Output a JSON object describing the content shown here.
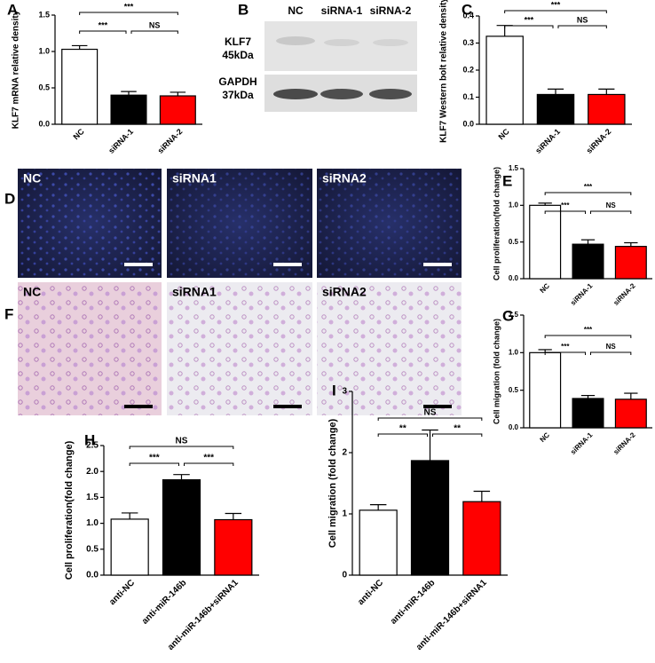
{
  "panel_labels": [
    "A",
    "B",
    "C",
    "D",
    "E",
    "F",
    "G",
    "H",
    "I"
  ],
  "blot": {
    "lanes": [
      "NC",
      "siRNA-1",
      "siRNA-2"
    ],
    "rows": [
      {
        "name": "KLF7",
        "size": "45kDa"
      },
      {
        "name": "GAPDH",
        "size": "37kDa"
      }
    ]
  },
  "micrographs": [
    {
      "labels": [
        "NC",
        "siRNA1",
        "siRNA2"
      ]
    },
    {
      "labels": [
        "NC",
        "siRNA1",
        "siRNA2"
      ]
    }
  ],
  "chart_data": [
    {
      "type": "bar",
      "ylabel": "KLF7 mRNA relative density",
      "categories": [
        "NC",
        "siRNA-1",
        "siRNA-2"
      ],
      "values": [
        1.03,
        0.4,
        0.39
      ],
      "errors": [
        0.05,
        0.05,
        0.05
      ],
      "colors": [
        "#ffffff",
        "#000000",
        "#ff0000"
      ],
      "ylim": [
        0,
        1.5
      ],
      "yticks": [
        {
          "value": 0,
          "label": "0.0"
        },
        0.5,
        {
          "value": 1,
          "label": "1.0"
        },
        1.5
      ],
      "significance": [
        "***",
        "***",
        "NS"
      ]
    },
    {
      "type": "bar",
      "ylabel": "KLF7 Western bolt relative density",
      "categories": [
        "NC",
        "siRNA-1",
        "siRNA-2"
      ],
      "values": [
        0.325,
        0.11,
        0.11
      ],
      "errors": [
        0.04,
        0.02,
        0.02
      ],
      "colors": [
        "#ffffff",
        "#000000",
        "#ff0000"
      ],
      "ylim": [
        0,
        0.4
      ],
      "yticks": [
        {
          "value": 0,
          "label": "0.0"
        },
        0.1,
        0.2,
        0.3,
        0.4
      ],
      "significance": [
        "***",
        "***",
        "NS"
      ]
    },
    {
      "type": "bar",
      "ylabel": "Cell proliferation(fold change)",
      "categories": [
        "NC",
        "siRNA-1",
        "siRNA-2"
      ],
      "values": [
        1.0,
        0.47,
        0.44
      ],
      "errors": [
        0.03,
        0.06,
        0.05
      ],
      "colors": [
        "#ffffff",
        "#000000",
        "#ff0000"
      ],
      "ylim": [
        0,
        1.5
      ],
      "yticks": [
        {
          "value": 0,
          "label": "0.0"
        },
        0.5,
        {
          "value": 1,
          "label": "1.0"
        },
        1.5
      ],
      "significance": [
        "***",
        "***",
        "NS"
      ]
    },
    {
      "type": "bar",
      "ylabel": "Cell migration (fold change)",
      "categories": [
        "NC",
        "siRNA-1",
        "siRNA-2"
      ],
      "values": [
        1.0,
        0.39,
        0.38
      ],
      "errors": [
        0.04,
        0.04,
        0.08
      ],
      "colors": [
        "#ffffff",
        "#000000",
        "#ff0000"
      ],
      "ylim": [
        0,
        1.5
      ],
      "yticks": [
        {
          "value": 0,
          "label": "0.0"
        },
        0.5,
        {
          "value": 1,
          "label": "1.0"
        },
        1.5
      ],
      "significance": [
        "***",
        "***",
        "NS"
      ]
    },
    {
      "type": "bar",
      "ylabel": "Cell proliferation(fold change)",
      "categories": [
        "anti-NC",
        "anti-miR-146b",
        "anti-miR-146b+siRNA1"
      ],
      "values": [
        1.08,
        1.84,
        1.07
      ],
      "errors": [
        0.12,
        0.1,
        0.12
      ],
      "colors": [
        "#ffffff",
        "#000000",
        "#ff0000"
      ],
      "ylim": [
        0,
        2.5
      ],
      "yticks": [
        {
          "value": 0,
          "label": "0.0"
        },
        0.5,
        {
          "value": 1,
          "label": "1.0"
        },
        1.5,
        {
          "value": 2,
          "label": "2.0"
        },
        2.5
      ],
      "significance": [
        "NS",
        "***",
        "***"
      ]
    },
    {
      "type": "bar",
      "ylabel": "Cell migration (fold change)",
      "categories": [
        "anti-NC",
        "anti-miR-146b",
        "anti-miR-146b+siRNA1"
      ],
      "values": [
        1.06,
        1.87,
        1.2
      ],
      "errors": [
        0.09,
        0.5,
        0.17
      ],
      "colors": [
        "#ffffff",
        "#000000",
        "#ff0000"
      ],
      "ylim": [
        0,
        3
      ],
      "yticks": [
        0,
        1,
        2,
        3
      ],
      "significance": [
        "NS",
        "**",
        "**"
      ]
    }
  ]
}
